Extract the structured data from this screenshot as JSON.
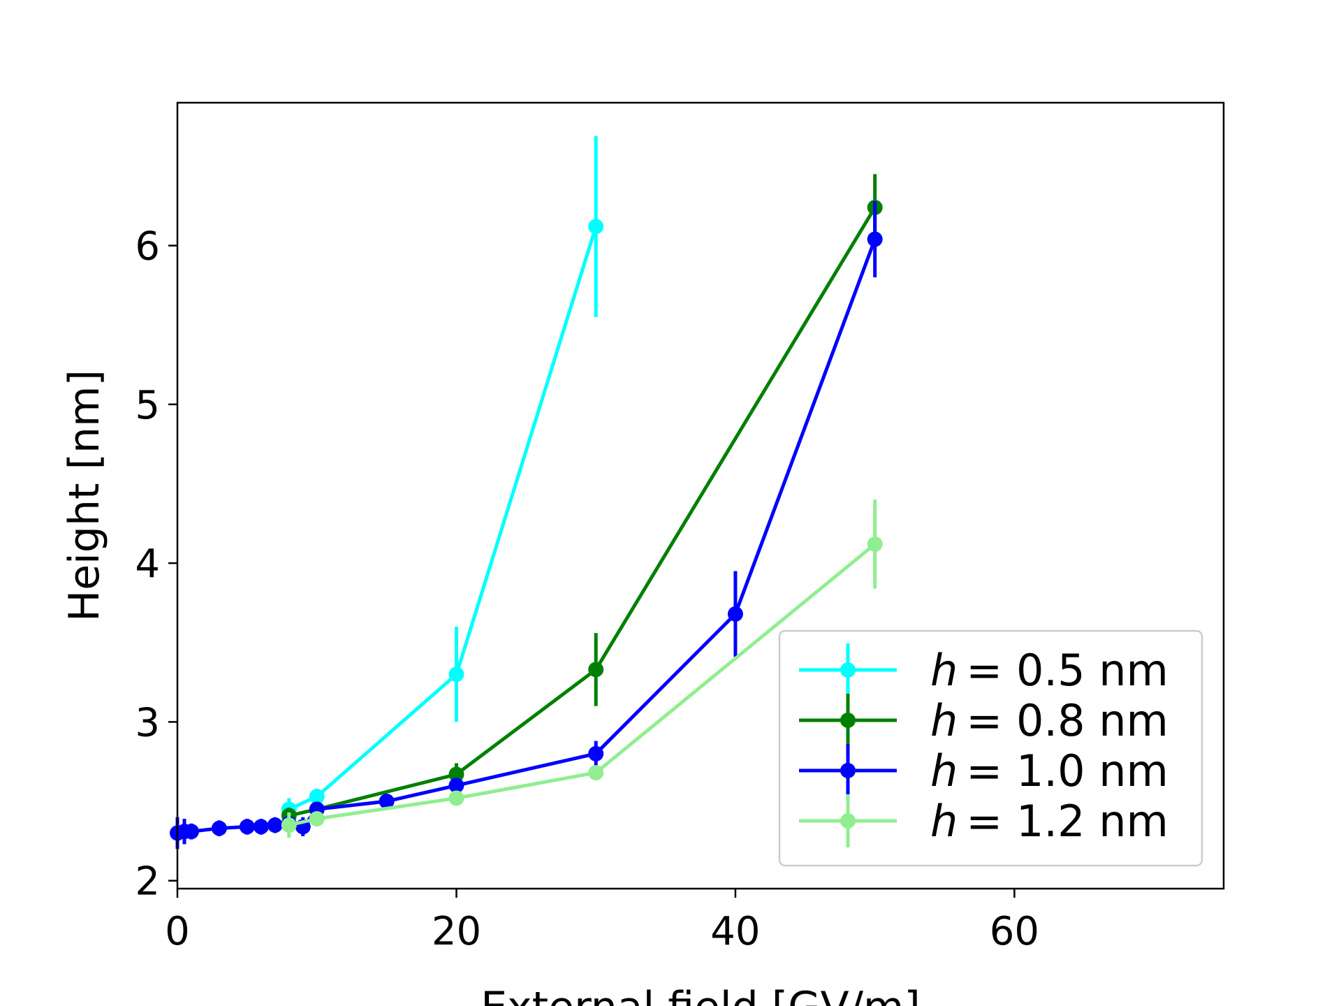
{
  "chart_data": {
    "type": "line",
    "title": "",
    "xlabel": "External field [GV/m]",
    "ylabel": "Height [nm]",
    "xlim": [
      0,
      75
    ],
    "ylim": [
      1.95,
      6.9
    ],
    "xticks": [
      0,
      20,
      40,
      60
    ],
    "yticks": [
      2,
      3,
      4,
      5,
      6
    ],
    "grid": false,
    "legend_position": "lower-right",
    "series": [
      {
        "name": "h = 0.5 nm",
        "legend_var": "h",
        "legend_rest": "= 0.5 nm",
        "color": "#00ffff",
        "x": [
          8,
          10,
          20,
          30
        ],
        "y": [
          2.45,
          2.53,
          3.3,
          6.12
        ],
        "yerr": [
          0.07,
          0.05,
          0.3,
          0.57
        ]
      },
      {
        "name": "h = 0.8 nm",
        "legend_var": "h",
        "legend_rest": "= 0.8 nm",
        "color": "#008000",
        "x": [
          8,
          10,
          20,
          30,
          50
        ],
        "y": [
          2.41,
          2.45,
          2.67,
          3.33,
          6.24
        ],
        "yerr": [
          0.05,
          0.04,
          0.07,
          0.23,
          0.21
        ]
      },
      {
        "name": "h = 1.0 nm",
        "legend_var": "h",
        "legend_rest": "= 1.0 nm",
        "color": "#0000ff",
        "x": [
          0,
          0.5,
          1,
          3,
          5,
          6,
          7,
          8,
          9,
          10,
          15,
          20,
          30,
          40,
          50
        ],
        "y": [
          2.3,
          2.31,
          2.31,
          2.33,
          2.34,
          2.34,
          2.35,
          2.36,
          2.34,
          2.45,
          2.5,
          2.6,
          2.8,
          3.68,
          6.04
        ],
        "yerr": [
          0.1,
          0.08,
          0.05,
          0.05,
          0.05,
          0.05,
          0.05,
          0.04,
          0.06,
          0.04,
          0.04,
          0.04,
          0.08,
          0.27,
          0.24
        ]
      },
      {
        "name": "h = 1.2 nm",
        "legend_var": "h",
        "legend_rest": "= 1.2 nm",
        "color": "#90ee90",
        "x": [
          8,
          10,
          20,
          30,
          40,
          50
        ],
        "y": [
          2.35,
          2.39,
          2.52,
          2.68,
          3.4,
          4.12
        ],
        "yerr": [
          0.08,
          0.04,
          0.03,
          0.03,
          0,
          0.28
        ],
        "marker_mask": [
          true,
          true,
          true,
          true,
          false,
          true
        ]
      }
    ]
  }
}
